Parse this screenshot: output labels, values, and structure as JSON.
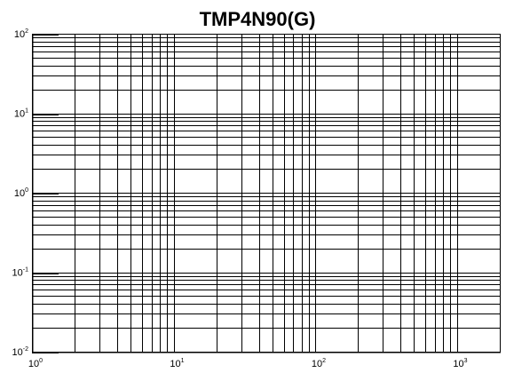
{
  "chart_data": {
    "type": "line",
    "title": "TMP4N90(G)",
    "xlabel": "",
    "ylabel": "",
    "x_scale": "log",
    "y_scale": "log",
    "xlim": [
      1,
      2000
    ],
    "ylim": [
      0.01,
      100
    ],
    "x_tick_labels": [
      {
        "value": 1,
        "base": "10",
        "exponent": "0"
      },
      {
        "value": 10,
        "base": "10",
        "exponent": "1"
      },
      {
        "value": 100,
        "base": "10",
        "exponent": "2"
      },
      {
        "value": 1000,
        "base": "10",
        "exponent": "3"
      }
    ],
    "y_tick_labels": [
      {
        "value": 0.01,
        "base": "10",
        "exponent": "-2"
      },
      {
        "value": 0.1,
        "base": "10",
        "exponent": "-1"
      },
      {
        "value": 1,
        "base": "10",
        "exponent": "0"
      },
      {
        "value": 10,
        "base": "10",
        "exponent": "1"
      },
      {
        "value": 100,
        "base": "10",
        "exponent": "2"
      }
    ],
    "grid": true,
    "grid_minor": true,
    "series": [],
    "colors": {
      "grid": "#000000",
      "axis": "#000000",
      "background": "#ffffff"
    }
  }
}
